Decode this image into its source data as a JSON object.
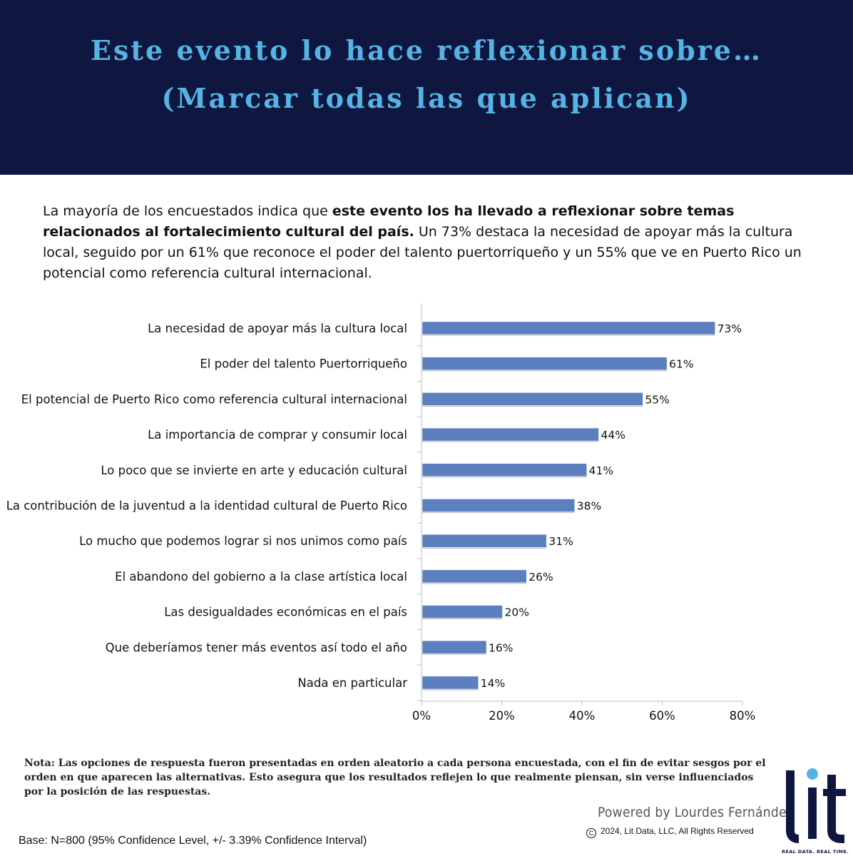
{
  "header": {
    "title_line1": "Este evento lo hace reflexionar sobre…",
    "title_line2": "(Marcar todas las que aplican)"
  },
  "intro": {
    "part1": "La mayoría de los encuestados indica que ",
    "bold": "este evento los ha llevado a reflexionar sobre temas relacionados al fortalecimiento cultural del país.",
    "part2": " Un 73% destaca la necesidad de apoyar más la cultura local, seguido por un 61% que reconoce el poder del talento puertorriqueño y un 55% que ve en Puerto Rico un potencial como referencia cultural internacional."
  },
  "chart_data": {
    "type": "bar",
    "orientation": "horizontal",
    "categories": [
      "La necesidad de apoyar más la cultura local",
      "El poder del talento Puertorriqueño",
      "El potencial de Puerto Rico como referencia cultural internacional",
      "La importancia de comprar y consumir local",
      "Lo poco que se invierte en arte y educación cultural",
      "La contribución de la juventud a la identidad cultural de Puerto Rico",
      "Lo mucho que podemos lograr si nos unimos como país",
      "El abandono del gobierno a la clase artística local",
      "Las desigualdades económicas en el país",
      "Que deberíamos tener más eventos así todo el año",
      "Nada en particular"
    ],
    "values": [
      73,
      61,
      55,
      44,
      41,
      38,
      31,
      26,
      20,
      16,
      14
    ],
    "value_labels": [
      "73%",
      "61%",
      "55%",
      "44%",
      "41%",
      "38%",
      "31%",
      "26%",
      "20%",
      "16%",
      "14%"
    ],
    "xlim": [
      0,
      80
    ],
    "ticks": [
      0,
      20,
      40,
      60,
      80
    ],
    "tick_labels": [
      "0%",
      "20%",
      "40%",
      "60%",
      "80%"
    ],
    "grid": false,
    "bar_color": "#5b7fbf"
  },
  "note": {
    "label": "Nota",
    "text": ": Las opciones de respuesta fueron presentadas en orden aleatorio a cada persona encuestada, con el fin de evitar sesgos por el orden en que aparecen las alternativas. Esto asegura que los resultados reflejen lo que realmente piensan, sin verse influenciados por la posición de las respuestas."
  },
  "footer": {
    "powered_by": "Powered by Lourdes Fernández",
    "copyright_symbol": "C",
    "copyright": "2024, Lit Data, LLC, All Rights Reserved",
    "base": "Base: N=800 (95% Confidence Level, +/- 3.39% Confidence Interval)"
  },
  "logo": {
    "wordmark": "lit",
    "tagline": "REAL DATA. REAL TIME.",
    "colors": {
      "navy": "#0f1740",
      "dot": "#55b4e3"
    }
  },
  "colors": {
    "header_bg": "#0f1740",
    "title_color": "#55b4e3",
    "bar_color": "#5b7fbf"
  }
}
